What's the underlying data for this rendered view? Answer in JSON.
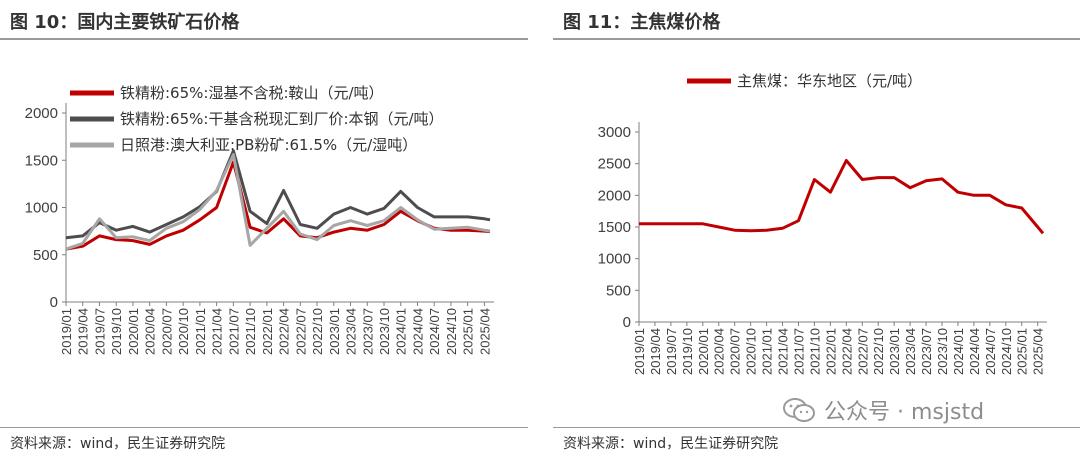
{
  "left": {
    "title": "图 10：国内主要铁矿石价格",
    "source": "资料来源：wind，民生证券研究院"
  },
  "right": {
    "title": "图 11：主焦煤价格",
    "source": "资料来源：wind，民生证券研究院"
  },
  "watermark": "公众号 · msjstd",
  "chart_data": [
    {
      "type": "line",
      "title": "",
      "ylim": [
        0,
        2000
      ],
      "yticks": [
        0,
        500,
        1000,
        1500,
        2000
      ],
      "x_tick_labels": [
        "2019/01",
        "2019/04",
        "2019/07",
        "2019/10",
        "2020/01",
        "2020/04",
        "2020/07",
        "2020/10",
        "2021/01",
        "2021/04",
        "2021/07",
        "2021/10",
        "2022/01",
        "2022/04",
        "2022/07",
        "2022/10",
        "2023/01",
        "2023/04",
        "2023/07",
        "2023/10",
        "2024/01",
        "2024/04",
        "2024/07",
        "2024/10",
        "2025/01",
        "2025/04"
      ],
      "legend": "top-left",
      "grid": false,
      "x": [
        "2019/01",
        "2019/04",
        "2019/07",
        "2019/10",
        "2020/01",
        "2020/04",
        "2020/07",
        "2020/10",
        "2021/01",
        "2021/04",
        "2021/07",
        "2021/10",
        "2022/01",
        "2022/04",
        "2022/07",
        "2022/10",
        "2023/01",
        "2023/04",
        "2023/07",
        "2023/10",
        "2024/01",
        "2024/04",
        "2024/07",
        "2024/10",
        "2025/01",
        "2025/04",
        "2025/05"
      ],
      "series": [
        {
          "name": "铁精粉:65%:湿基不含税:鞍山（元/吨）",
          "color": "#c00000",
          "values": [
            560,
            590,
            700,
            660,
            650,
            610,
            700,
            760,
            870,
            1000,
            1480,
            790,
            730,
            880,
            700,
            680,
            740,
            780,
            760,
            820,
            960,
            860,
            780,
            760,
            760,
            750,
            745
          ]
        },
        {
          "name": "铁精粉:65%:干基含税现汇到厂价:本钢（元/吨）",
          "color": "#4d4d4d",
          "values": [
            680,
            700,
            840,
            760,
            800,
            740,
            820,
            900,
            1010,
            1170,
            1600,
            960,
            830,
            1180,
            820,
            780,
            930,
            1000,
            930,
            990,
            1170,
            1000,
            900,
            900,
            900,
            880,
            870
          ]
        },
        {
          "name": "日照港:澳大利亚:PB粉矿:61.5%（元/湿吨）",
          "color": "#a6a6a6",
          "values": [
            560,
            620,
            880,
            680,
            690,
            650,
            780,
            850,
            980,
            1180,
            1560,
            600,
            780,
            960,
            720,
            660,
            810,
            860,
            810,
            860,
            1000,
            870,
            770,
            780,
            790,
            760,
            750
          ]
        }
      ]
    },
    {
      "type": "line",
      "title": "",
      "ylim": [
        0,
        3000
      ],
      "yticks": [
        0,
        500,
        1000,
        1500,
        2000,
        2500,
        3000
      ],
      "x_tick_labels": [
        "2019/01",
        "2019/04",
        "2019/07",
        "2019/10",
        "2020/01",
        "2020/04",
        "2020/07",
        "2020/10",
        "2021/01",
        "2021/04",
        "2021/07",
        "2021/10",
        "2022/01",
        "2022/04",
        "2022/07",
        "2022/10",
        "2023/01",
        "2023/04",
        "2023/07",
        "2023/10",
        "2024/01",
        "2024/04",
        "2024/07",
        "2024/10",
        "2025/01",
        "2025/04"
      ],
      "legend": "top-left",
      "grid": false,
      "x": [
        "2019/01",
        "2019/04",
        "2019/07",
        "2019/10",
        "2020/01",
        "2020/04",
        "2020/07",
        "2020/10",
        "2021/01",
        "2021/04",
        "2021/07",
        "2021/10",
        "2022/01",
        "2022/04",
        "2022/07",
        "2022/10",
        "2023/01",
        "2023/04",
        "2023/07",
        "2023/10",
        "2024/01",
        "2024/04",
        "2024/07",
        "2024/10",
        "2025/01",
        "2025/04",
        "2025/05"
      ],
      "series": [
        {
          "name": "主焦煤：华东地区（元/吨）",
          "color": "#c00000",
          "values": [
            1550,
            1550,
            1550,
            1550,
            1550,
            1500,
            1450,
            1440,
            1450,
            1480,
            1600,
            2250,
            2050,
            2550,
            2250,
            2280,
            2280,
            2120,
            2230,
            2260,
            2050,
            2000,
            2000,
            1850,
            1800,
            1500,
            1400
          ]
        }
      ]
    }
  ]
}
